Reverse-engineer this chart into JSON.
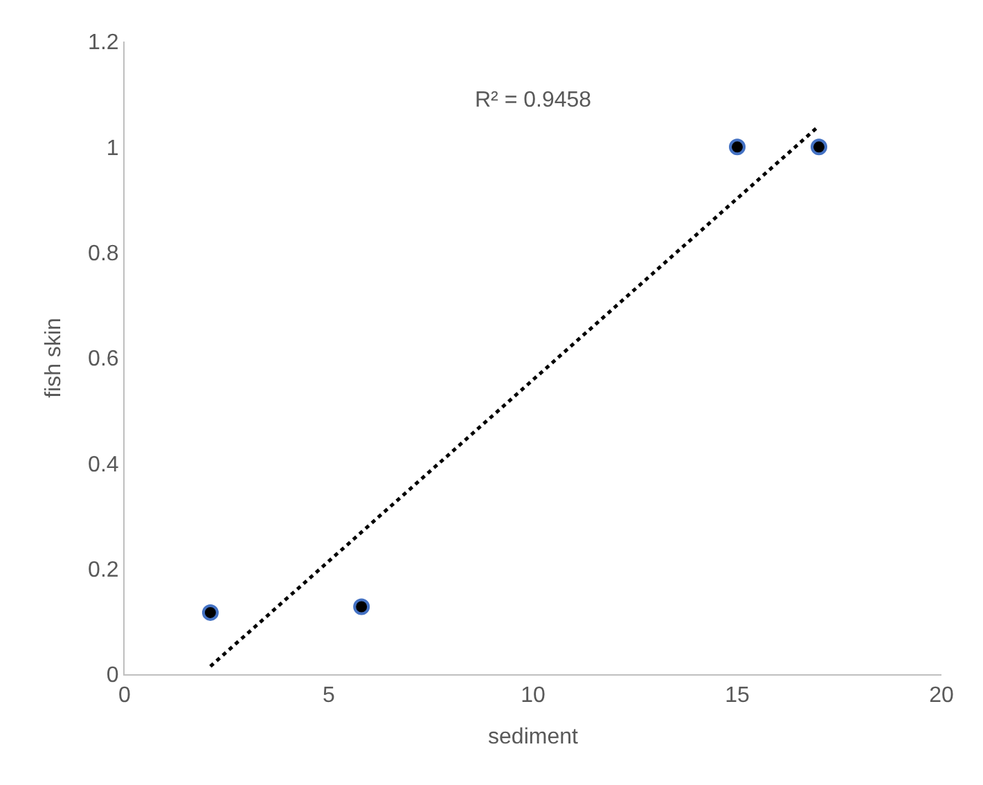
{
  "chart_data": {
    "type": "scatter",
    "xlabel": "sediment",
    "ylabel": "fish skin",
    "x": [
      2.1,
      5.8,
      15.0,
      17.0
    ],
    "series": [
      {
        "color": "#000000",
        "marker": "circle",
        "values": [
          0.117,
          0.128,
          1.0,
          1.0
        ]
      },
      {
        "type": "line",
        "color": "#000000",
        "line_style": "dotted",
        "marker": "none",
        "x": [
          2.1,
          17.0
        ],
        "values": [
          0.015,
          1.04
        ]
      }
    ],
    "annotations": [
      "R² = 0.9458"
    ],
    "xlim": [
      0,
      20
    ],
    "xticks": [
      0,
      5,
      10,
      15,
      20
    ],
    "ylim": [
      0,
      1.2
    ],
    "yticks": [
      0,
      0.2,
      0.4,
      0.6,
      0.8,
      1,
      1.2
    ]
  }
}
